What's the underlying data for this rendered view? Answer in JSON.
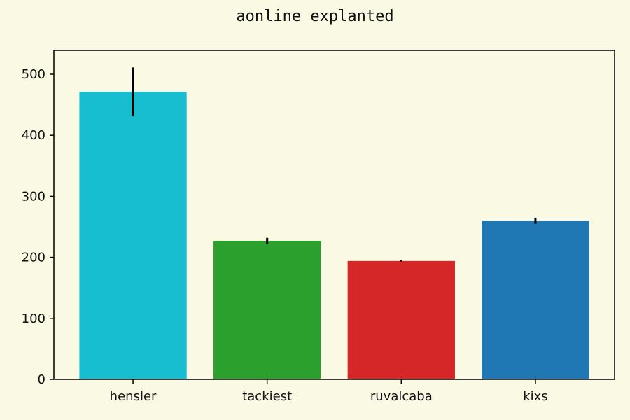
{
  "chart_data": {
    "type": "bar",
    "title": "aonline explanted",
    "xlabel": "",
    "ylabel": "",
    "categories": [
      "hensler",
      "tackiest",
      "ruvalcaba",
      "kixs"
    ],
    "values": [
      471,
      227,
      194,
      260
    ],
    "errors": [
      40,
      5,
      1,
      5
    ],
    "colors": [
      "#17becf",
      "#2ca02c",
      "#d62728",
      "#1f77b4"
    ],
    "ylim": [
      0,
      539
    ],
    "yticks": [
      0,
      100,
      200,
      300,
      400,
      500
    ],
    "ytick_labels": [
      "0",
      "100",
      "200",
      "300",
      "400",
      "500"
    ],
    "grid": false,
    "background": "#faf9e4"
  }
}
